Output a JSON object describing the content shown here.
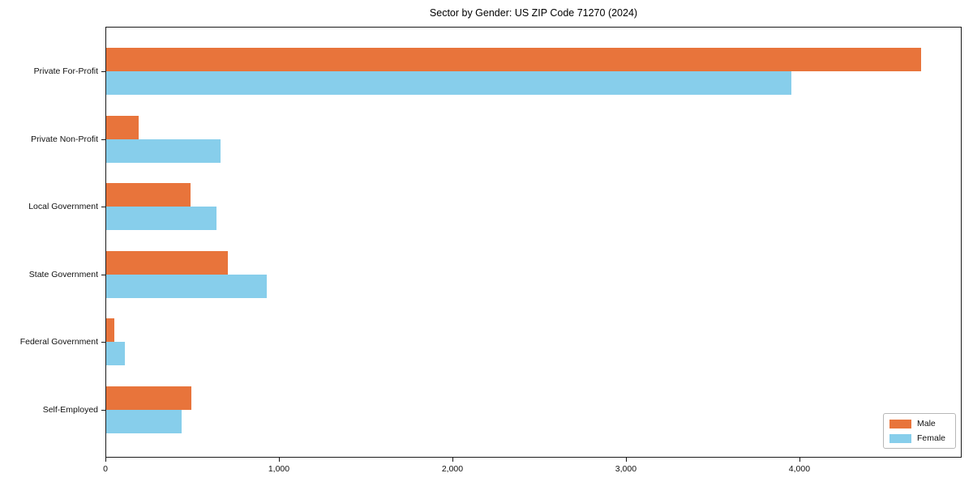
{
  "chart_data": {
    "type": "bar",
    "orientation": "horizontal",
    "title": "Sector by Gender: US ZIP Code 71270 (2024)",
    "categories": [
      "Private For-Profit",
      "Private Non-Profit",
      "Local Government",
      "State Government",
      "Federal Government",
      "Self-Employed"
    ],
    "series": [
      {
        "name": "Male",
        "color": "#e8743b",
        "values": [
          4700,
          190,
          490,
          705,
          50,
          495
        ]
      },
      {
        "name": "Female",
        "color": "#87ceeb",
        "values": [
          3955,
          665,
          640,
          930,
          110,
          440
        ]
      }
    ],
    "xlabel": "",
    "ylabel": "",
    "xlim": [
      0,
      4935
    ],
    "xticks": [
      0,
      1000,
      2000,
      3000,
      4000
    ],
    "xtick_labels": [
      "0",
      "1,000",
      "2,000",
      "3,000",
      "4,000"
    ],
    "grid": false,
    "legend_position": "lower right"
  }
}
